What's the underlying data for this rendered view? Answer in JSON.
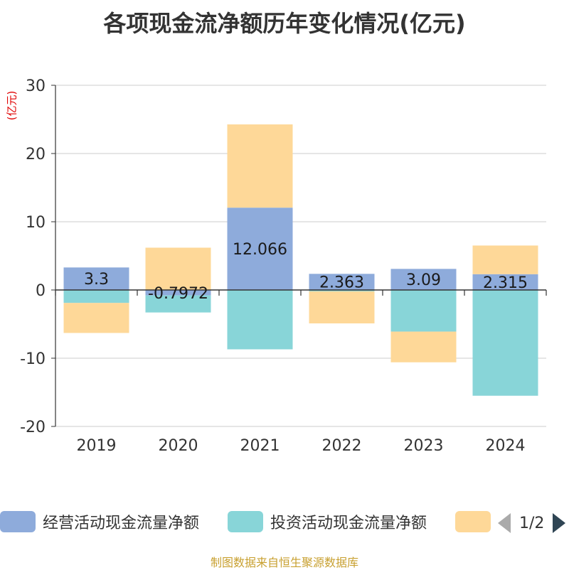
{
  "chart_data": {
    "type": "bar",
    "stacked": true,
    "title": "各项现金流净额历年变化情况(亿元)",
    "ylabel": "(亿元)",
    "categories": [
      "2019",
      "2020",
      "2021",
      "2022",
      "2023",
      "2024"
    ],
    "ylim": [
      -20,
      30
    ],
    "yticks": [
      30,
      20,
      10,
      0,
      -10,
      -20
    ],
    "ytick_labels": [
      "30",
      "20",
      "10",
      "0",
      "-10",
      "-20"
    ],
    "grid": true,
    "series": [
      {
        "name": "经营活动现金流量净额",
        "color": "#8eabdb",
        "values": [
          3.3,
          -0.7972,
          12.066,
          2.363,
          3.09,
          2.315
        ],
        "labels": [
          "3.3",
          "-0.7972",
          "12.066",
          "2.363",
          "3.09",
          "2.315"
        ]
      },
      {
        "name": "投资活动现金流量净额",
        "color": "#88d5d8",
        "values": [
          -1.9,
          -2.5,
          -8.7,
          -0.2,
          -6.1,
          -15.5
        ]
      },
      {
        "name": "",
        "color": "#fed898",
        "values": [
          -4.4,
          6.2,
          12.2,
          -4.7,
          -4.5,
          4.2
        ]
      }
    ]
  },
  "legend": {
    "items": [
      {
        "label": "经营活动现金流量净额",
        "color": "#8eabdb"
      },
      {
        "label": "投资活动现金流量净额",
        "color": "#88d5d8"
      },
      {
        "label": "",
        "color": "#fed898"
      }
    ],
    "page": "1/2"
  },
  "source": "制图数据来自恒生聚源数据库"
}
